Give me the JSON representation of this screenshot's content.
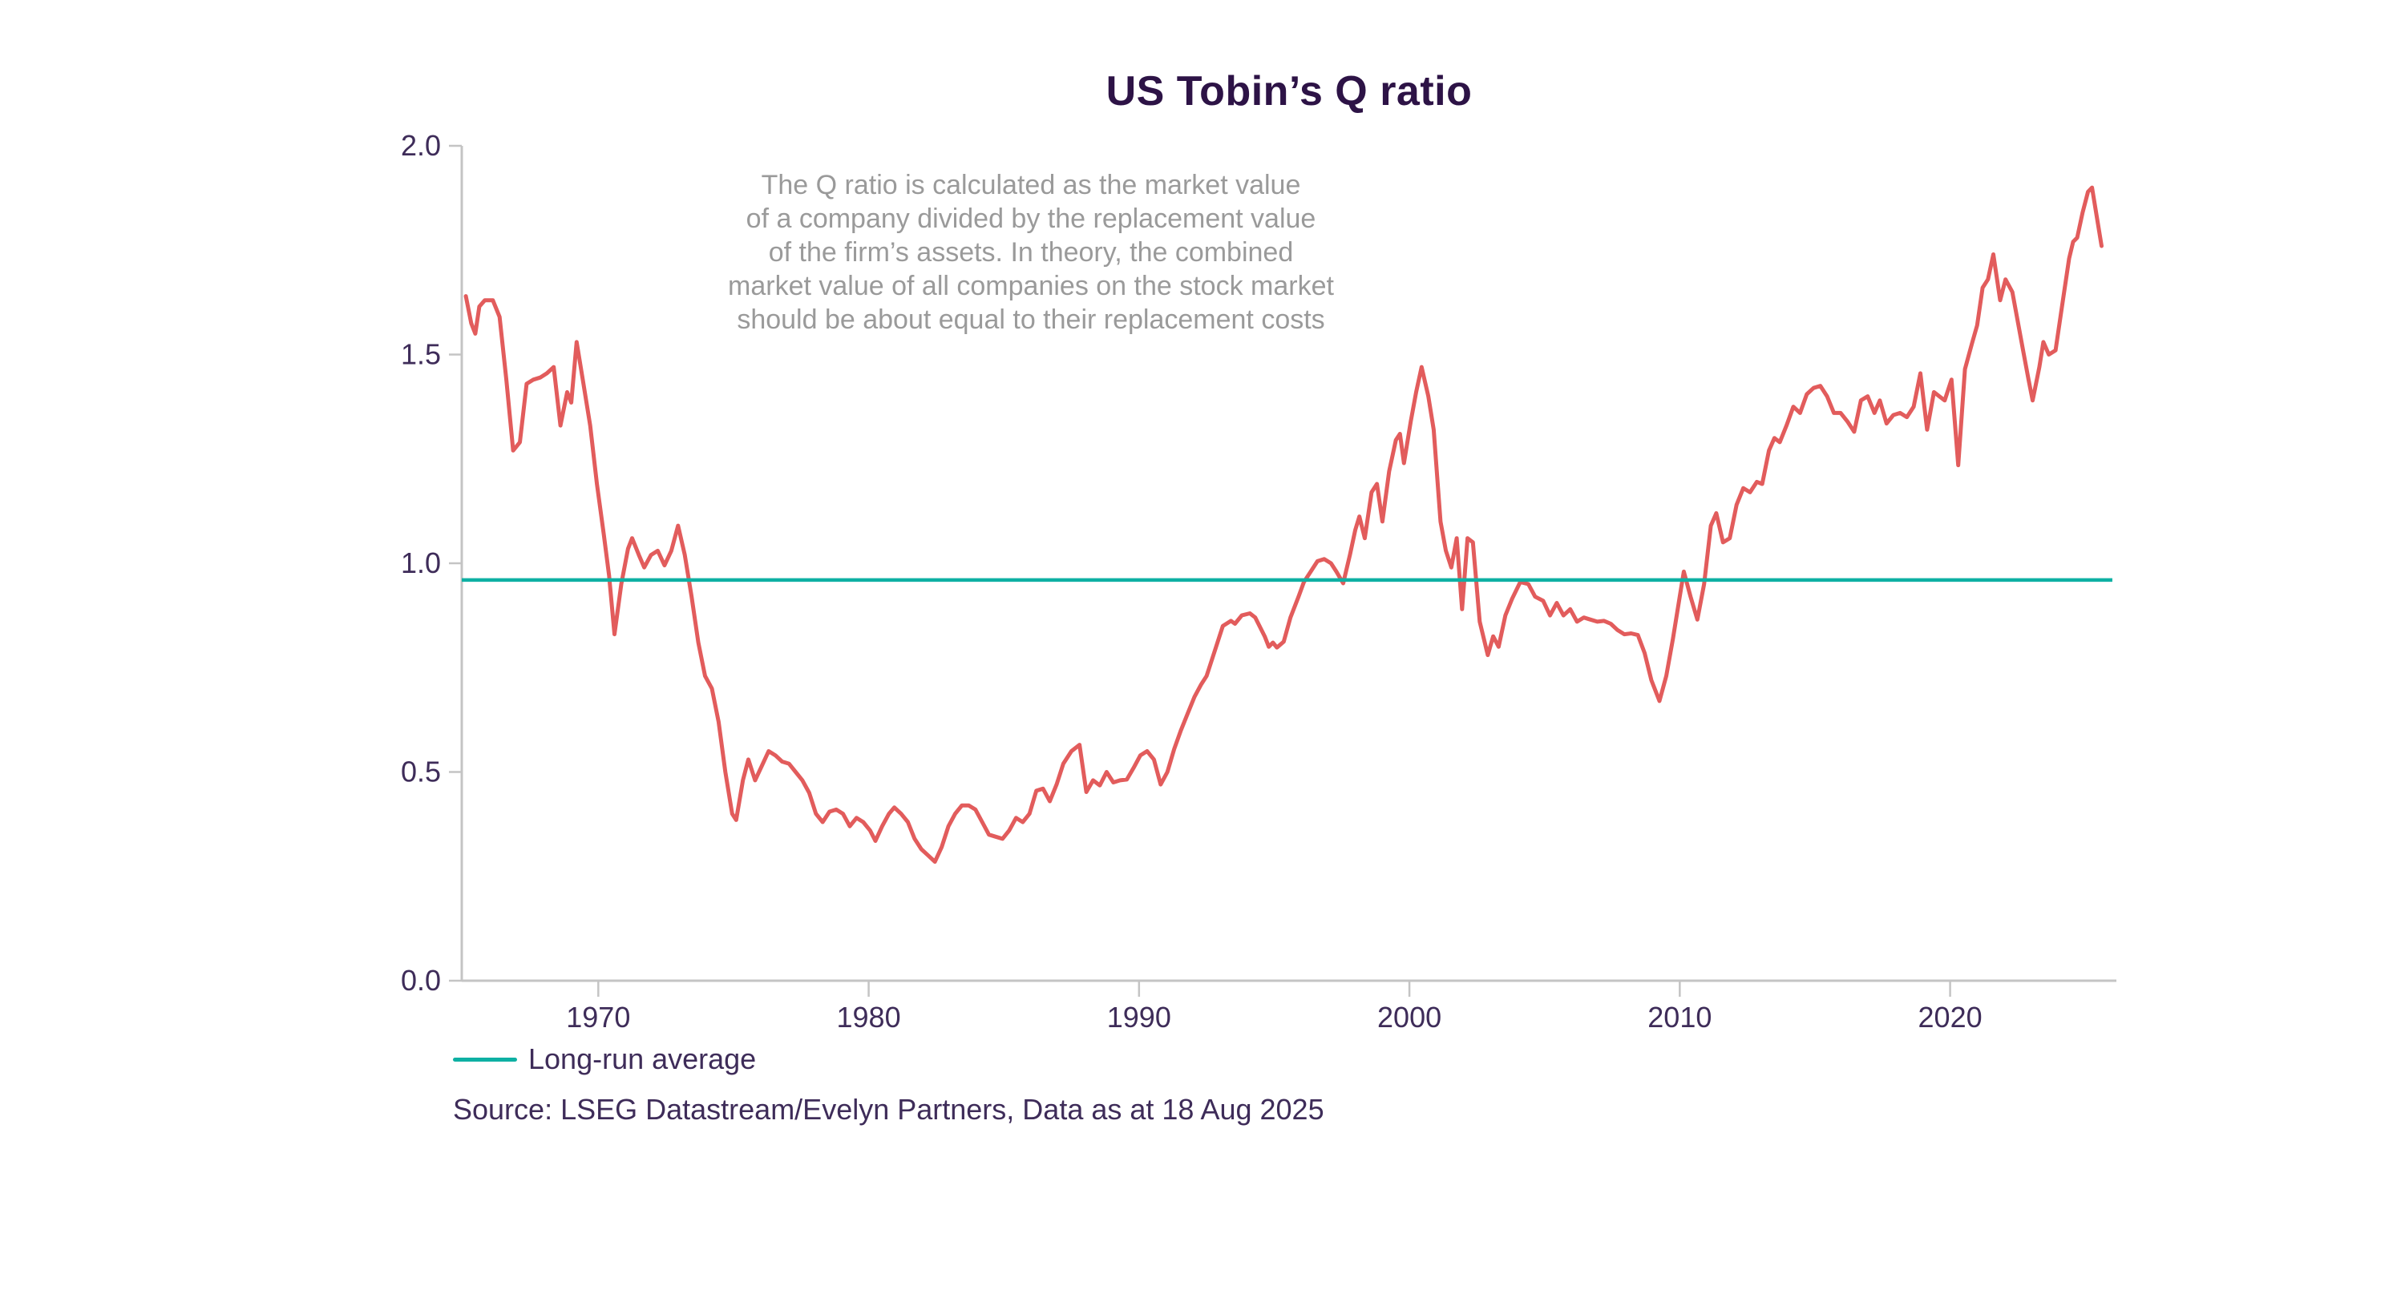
{
  "title": "US Tobin’s Q ratio",
  "annotation": {
    "lines": [
      "The Q ratio is calculated as the market value",
      "of a company divided by the replacement value",
      "of the firm’s assets. In theory, the combined",
      "market value of all companies on the stock market",
      "should be about equal to their replacement costs"
    ]
  },
  "legend": {
    "items": [
      {
        "label": "Long-run average",
        "color": "#0eb0a3"
      }
    ]
  },
  "source_note": "Source: LSEG Datastream/Evelyn Partners, Data as at 18 Aug 2025",
  "colors": {
    "series": "#e25c5c",
    "average": "#0eb0a3",
    "title": "#2d1346",
    "text": "#3e2c59",
    "annotation": "#9a9a9a",
    "axis": "#c4c4c4",
    "background": "#ffffff"
  },
  "chart_data": {
    "type": "line",
    "title": "US Tobin’s Q ratio",
    "xlabel": "",
    "ylabel": "",
    "xlim": [
      1964.95,
      2026.15
    ],
    "ylim": [
      0,
      2
    ],
    "x_ticks": [
      1970,
      1980,
      1990,
      2000,
      2010,
      2020
    ],
    "y_ticks": [
      0,
      0.5,
      1,
      1.5,
      2
    ],
    "y_tick_labels": [
      "0.0",
      "0.5",
      "1.0",
      "1.5",
      "2.0"
    ],
    "grid": false,
    "legend_position": "bottom-left",
    "series": [
      {
        "name": "US Tobin's Q ratio",
        "type": "line",
        "color": "#e25c5c",
        "points": [
          [
            1965.1,
            1.64
          ],
          [
            1965.3,
            1.575
          ],
          [
            1965.45,
            1.55
          ],
          [
            1965.6,
            1.615
          ],
          [
            1965.8,
            1.63
          ],
          [
            1966.1,
            1.63
          ],
          [
            1966.35,
            1.59
          ],
          [
            1966.6,
            1.44
          ],
          [
            1966.85,
            1.27
          ],
          [
            1967.1,
            1.29
          ],
          [
            1967.35,
            1.43
          ],
          [
            1967.6,
            1.44
          ],
          [
            1967.85,
            1.445
          ],
          [
            1968.1,
            1.455
          ],
          [
            1968.35,
            1.47
          ],
          [
            1968.6,
            1.33
          ],
          [
            1968.85,
            1.41
          ],
          [
            1969.0,
            1.385
          ],
          [
            1969.2,
            1.53
          ],
          [
            1969.45,
            1.43
          ],
          [
            1969.7,
            1.33
          ],
          [
            1969.95,
            1.19
          ],
          [
            1970.2,
            1.07
          ],
          [
            1970.4,
            0.97
          ],
          [
            1970.6,
            0.83
          ],
          [
            1970.85,
            0.95
          ],
          [
            1971.1,
            1.035
          ],
          [
            1971.25,
            1.06
          ],
          [
            1971.5,
            1.02
          ],
          [
            1971.7,
            0.99
          ],
          [
            1971.95,
            1.02
          ],
          [
            1972.2,
            1.03
          ],
          [
            1972.45,
            0.995
          ],
          [
            1972.7,
            1.03
          ],
          [
            1972.95,
            1.09
          ],
          [
            1973.2,
            1.02
          ],
          [
            1973.45,
            0.92
          ],
          [
            1973.7,
            0.81
          ],
          [
            1973.95,
            0.73
          ],
          [
            1974.2,
            0.7
          ],
          [
            1974.45,
            0.62
          ],
          [
            1974.7,
            0.5
          ],
          [
            1974.95,
            0.4
          ],
          [
            1975.1,
            0.385
          ],
          [
            1975.35,
            0.48
          ],
          [
            1975.55,
            0.53
          ],
          [
            1975.8,
            0.48
          ],
          [
            1976.05,
            0.515
          ],
          [
            1976.3,
            0.55
          ],
          [
            1976.55,
            0.54
          ],
          [
            1976.8,
            0.525
          ],
          [
            1977.05,
            0.52
          ],
          [
            1977.3,
            0.5
          ],
          [
            1977.55,
            0.48
          ],
          [
            1977.8,
            0.45
          ],
          [
            1978.05,
            0.4
          ],
          [
            1978.3,
            0.38
          ],
          [
            1978.55,
            0.405
          ],
          [
            1978.8,
            0.41
          ],
          [
            1979.05,
            0.4
          ],
          [
            1979.3,
            0.37
          ],
          [
            1979.55,
            0.39
          ],
          [
            1979.8,
            0.38
          ],
          [
            1980.05,
            0.36
          ],
          [
            1980.25,
            0.335
          ],
          [
            1980.5,
            0.37
          ],
          [
            1980.75,
            0.4
          ],
          [
            1980.95,
            0.415
          ],
          [
            1981.2,
            0.4
          ],
          [
            1981.45,
            0.38
          ],
          [
            1981.7,
            0.34
          ],
          [
            1981.95,
            0.315
          ],
          [
            1982.2,
            0.3
          ],
          [
            1982.45,
            0.285
          ],
          [
            1982.7,
            0.32
          ],
          [
            1982.95,
            0.37
          ],
          [
            1983.2,
            0.4
          ],
          [
            1983.45,
            0.42
          ],
          [
            1983.7,
            0.42
          ],
          [
            1983.95,
            0.41
          ],
          [
            1984.2,
            0.38
          ],
          [
            1984.45,
            0.35
          ],
          [
            1984.7,
            0.345
          ],
          [
            1984.95,
            0.34
          ],
          [
            1985.2,
            0.36
          ],
          [
            1985.45,
            0.39
          ],
          [
            1985.7,
            0.38
          ],
          [
            1985.95,
            0.4
          ],
          [
            1986.2,
            0.455
          ],
          [
            1986.45,
            0.46
          ],
          [
            1986.7,
            0.43
          ],
          [
            1986.95,
            0.47
          ],
          [
            1987.2,
            0.52
          ],
          [
            1987.5,
            0.55
          ],
          [
            1987.8,
            0.565
          ],
          [
            1988.05,
            0.452
          ],
          [
            1988.3,
            0.48
          ],
          [
            1988.55,
            0.468
          ],
          [
            1988.8,
            0.5
          ],
          [
            1989.05,
            0.475
          ],
          [
            1989.3,
            0.48
          ],
          [
            1989.55,
            0.482
          ],
          [
            1989.8,
            0.51
          ],
          [
            1990.05,
            0.54
          ],
          [
            1990.3,
            0.55
          ],
          [
            1990.55,
            0.53
          ],
          [
            1990.8,
            0.47
          ],
          [
            1991.05,
            0.5
          ],
          [
            1991.3,
            0.555
          ],
          [
            1991.55,
            0.6
          ],
          [
            1991.8,
            0.64
          ],
          [
            1992.05,
            0.68
          ],
          [
            1992.3,
            0.71
          ],
          [
            1992.5,
            0.73
          ],
          [
            1992.8,
            0.79
          ],
          [
            1993.1,
            0.85
          ],
          [
            1993.4,
            0.862
          ],
          [
            1993.55,
            0.855
          ],
          [
            1993.8,
            0.875
          ],
          [
            1994.1,
            0.88
          ],
          [
            1994.3,
            0.87
          ],
          [
            1994.65,
            0.825
          ],
          [
            1994.8,
            0.8
          ],
          [
            1994.95,
            0.81
          ],
          [
            1995.1,
            0.798
          ],
          [
            1995.35,
            0.812
          ],
          [
            1995.6,
            0.87
          ],
          [
            1995.9,
            0.92
          ],
          [
            1996.1,
            0.955
          ],
          [
            1996.35,
            0.98
          ],
          [
            1996.6,
            1.005
          ],
          [
            1996.85,
            1.01
          ],
          [
            1997.1,
            1.0
          ],
          [
            1997.3,
            0.98
          ],
          [
            1997.55,
            0.952
          ],
          [
            1997.8,
            1.02
          ],
          [
            1998.0,
            1.08
          ],
          [
            1998.15,
            1.112
          ],
          [
            1998.35,
            1.06
          ],
          [
            1998.6,
            1.17
          ],
          [
            1998.8,
            1.19
          ],
          [
            1999.0,
            1.1
          ],
          [
            1999.25,
            1.22
          ],
          [
            1999.5,
            1.295
          ],
          [
            1999.65,
            1.31
          ],
          [
            1999.8,
            1.24
          ],
          [
            2000.05,
            1.34
          ],
          [
            2000.25,
            1.41
          ],
          [
            2000.45,
            1.47
          ],
          [
            2000.7,
            1.4
          ],
          [
            2000.9,
            1.32
          ],
          [
            2001.15,
            1.1
          ],
          [
            2001.35,
            1.03
          ],
          [
            2001.55,
            0.99
          ],
          [
            2001.75,
            1.06
          ],
          [
            2001.95,
            0.89
          ],
          [
            2002.15,
            1.06
          ],
          [
            2002.35,
            1.05
          ],
          [
            2002.6,
            0.86
          ],
          [
            2002.9,
            0.78
          ],
          [
            2003.1,
            0.825
          ],
          [
            2003.3,
            0.8
          ],
          [
            2003.55,
            0.875
          ],
          [
            2003.8,
            0.915
          ],
          [
            2004.1,
            0.955
          ],
          [
            2004.4,
            0.95
          ],
          [
            2004.65,
            0.92
          ],
          [
            2004.95,
            0.91
          ],
          [
            2005.2,
            0.875
          ],
          [
            2005.45,
            0.905
          ],
          [
            2005.7,
            0.875
          ],
          [
            2005.95,
            0.89
          ],
          [
            2006.2,
            0.86
          ],
          [
            2006.45,
            0.87
          ],
          [
            2006.7,
            0.865
          ],
          [
            2006.95,
            0.86
          ],
          [
            2007.2,
            0.862
          ],
          [
            2007.45,
            0.855
          ],
          [
            2007.7,
            0.84
          ],
          [
            2007.95,
            0.83
          ],
          [
            2008.2,
            0.832
          ],
          [
            2008.45,
            0.828
          ],
          [
            2008.7,
            0.785
          ],
          [
            2008.95,
            0.72
          ],
          [
            2009.25,
            0.67
          ],
          [
            2009.5,
            0.73
          ],
          [
            2009.75,
            0.82
          ],
          [
            2010.0,
            0.92
          ],
          [
            2010.15,
            0.98
          ],
          [
            2010.4,
            0.92
          ],
          [
            2010.65,
            0.865
          ],
          [
            2010.9,
            0.95
          ],
          [
            2011.15,
            1.09
          ],
          [
            2011.35,
            1.12
          ],
          [
            2011.6,
            1.05
          ],
          [
            2011.85,
            1.06
          ],
          [
            2012.1,
            1.14
          ],
          [
            2012.35,
            1.18
          ],
          [
            2012.6,
            1.17
          ],
          [
            2012.85,
            1.195
          ],
          [
            2013.05,
            1.19
          ],
          [
            2013.3,
            1.27
          ],
          [
            2013.5,
            1.3
          ],
          [
            2013.7,
            1.29
          ],
          [
            2013.95,
            1.33
          ],
          [
            2014.2,
            1.375
          ],
          [
            2014.45,
            1.36
          ],
          [
            2014.7,
            1.405
          ],
          [
            2014.95,
            1.42
          ],
          [
            2015.2,
            1.425
          ],
          [
            2015.45,
            1.4
          ],
          [
            2015.7,
            1.36
          ],
          [
            2015.95,
            1.36
          ],
          [
            2016.2,
            1.34
          ],
          [
            2016.45,
            1.315
          ],
          [
            2016.7,
            1.39
          ],
          [
            2016.95,
            1.4
          ],
          [
            2017.2,
            1.36
          ],
          [
            2017.4,
            1.39
          ],
          [
            2017.65,
            1.335
          ],
          [
            2017.9,
            1.355
          ],
          [
            2018.15,
            1.36
          ],
          [
            2018.4,
            1.35
          ],
          [
            2018.65,
            1.375
          ],
          [
            2018.9,
            1.455
          ],
          [
            2019.15,
            1.32
          ],
          [
            2019.4,
            1.41
          ],
          [
            2019.6,
            1.4
          ],
          [
            2019.8,
            1.39
          ],
          [
            2020.05,
            1.44
          ],
          [
            2020.3,
            1.235
          ],
          [
            2020.55,
            1.465
          ],
          [
            2020.8,
            1.525
          ],
          [
            2021.0,
            1.57
          ],
          [
            2021.2,
            1.66
          ],
          [
            2021.4,
            1.68
          ],
          [
            2021.6,
            1.74
          ],
          [
            2021.85,
            1.63
          ],
          [
            2022.05,
            1.68
          ],
          [
            2022.3,
            1.65
          ],
          [
            2022.5,
            1.58
          ],
          [
            2022.7,
            1.51
          ],
          [
            2022.9,
            1.44
          ],
          [
            2023.05,
            1.39
          ],
          [
            2023.3,
            1.47
          ],
          [
            2023.45,
            1.53
          ],
          [
            2023.65,
            1.5
          ],
          [
            2023.9,
            1.51
          ],
          [
            2024.15,
            1.62
          ],
          [
            2024.4,
            1.73
          ],
          [
            2024.55,
            1.77
          ],
          [
            2024.7,
            1.78
          ],
          [
            2024.9,
            1.84
          ],
          [
            2025.1,
            1.89
          ],
          [
            2025.25,
            1.9
          ],
          [
            2025.45,
            1.82
          ],
          [
            2025.6,
            1.76
          ]
        ]
      },
      {
        "name": "Long-run average",
        "type": "hline",
        "color": "#0eb0a3",
        "value": 0.96,
        "x_start": 1964.95,
        "x_end": 2026.0
      }
    ]
  }
}
